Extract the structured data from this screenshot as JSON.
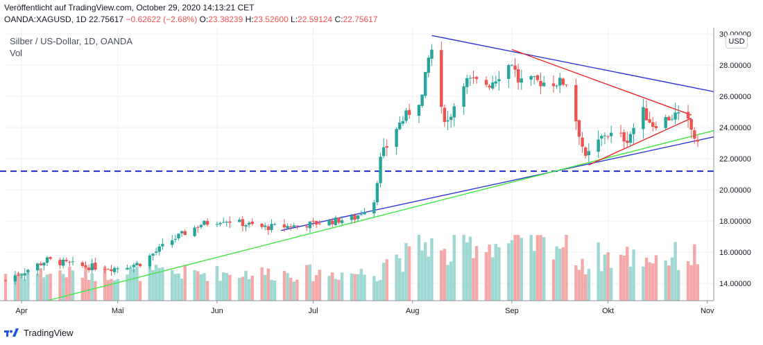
{
  "header": {
    "published": "Veröffentlicht auf TradingView.com, October 29, 2020 14:13:21 CET",
    "symbol": "OANDA:XAGUSD, 1D",
    "last": "22.75617",
    "change": "−0.62622 (−2.68%)",
    "o_label": "O:",
    "o": "23.38239",
    "h_label": "H:",
    "h": "23.52600",
    "l_label": "L:",
    "l": "22.59124",
    "c_label": "C:",
    "c": "22.75617"
  },
  "chart_title": "Silber / US-Dollar, 1D, OANDA",
  "vol_label": "Vol",
  "currency_badge": "USD",
  "footer": {
    "brand": "TradingView"
  },
  "colors": {
    "up": "#26a69a",
    "down": "#ef5350",
    "up_vol": "#9fd8d2",
    "down_vol": "#f4a9a8",
    "trend_blue": "#2b32d8",
    "trend_green": "#3ee83e",
    "trend_red": "#ef2424",
    "support": "#1c2bd0"
  },
  "chart_data": {
    "type": "candlestick",
    "title": "Silber / US-Dollar, 1D, OANDA",
    "ylim": [
      12.9,
      30.4
    ],
    "y_ticks": [
      "30.00000",
      "28.00000",
      "26.00000",
      "24.00000",
      "22.00000",
      "20.00000",
      "18.00000",
      "16.00000",
      "14.00000"
    ],
    "x_ticks": [
      "Apr",
      "Mai",
      "Jun",
      "Jul",
      "Aug",
      "Sep",
      "Okt",
      "Nov"
    ],
    "x_range": [
      "2020-03-27",
      "2020-11-03"
    ],
    "anchors": [
      [
        "2020-03-27",
        14.2
      ],
      [
        "2020-04-09",
        15.5
      ],
      [
        "2020-04-20",
        15.1
      ],
      [
        "2020-04-30",
        15.0
      ],
      [
        "2020-05-08",
        15.3
      ],
      [
        "2020-05-18",
        16.8
      ],
      [
        "2020-05-27",
        17.8
      ],
      [
        "2020-06-03",
        18.1
      ],
      [
        "2020-06-15",
        17.6
      ],
      [
        "2020-06-26",
        17.7
      ],
      [
        "2020-07-07",
        18.0
      ],
      [
        "2020-07-14",
        18.2
      ],
      [
        "2020-07-20",
        19.3
      ],
      [
        "2020-07-22",
        22.0
      ],
      [
        "2020-07-27",
        24.0
      ],
      [
        "2020-08-04",
        26.0
      ],
      [
        "2020-08-06",
        28.4
      ],
      [
        "2020-08-07",
        29.0
      ],
      [
        "2020-08-10",
        25.0
      ],
      [
        "2020-08-12",
        24.4
      ],
      [
        "2020-08-17",
        27.0
      ],
      [
        "2020-08-25",
        26.8
      ],
      [
        "2020-09-01",
        28.2
      ],
      [
        "2020-09-03",
        27.0
      ],
      [
        "2020-09-11",
        26.9
      ],
      [
        "2020-09-18",
        26.9
      ],
      [
        "2020-09-21",
        24.5
      ],
      [
        "2020-09-24",
        22.0
      ],
      [
        "2020-09-30",
        23.6
      ],
      [
        "2020-10-07",
        23.3
      ],
      [
        "2020-10-12",
        25.0
      ],
      [
        "2020-10-15",
        24.2
      ],
      [
        "2020-10-22",
        24.8
      ],
      [
        "2020-10-26",
        24.3
      ],
      [
        "2020-10-28",
        23.4
      ],
      [
        "2020-10-29",
        22.76
      ]
    ],
    "trendlines": [
      {
        "color": "blue",
        "from": [
          "2020-08-07",
          29.9
        ],
        "to": [
          "2020-11-03",
          26.3
        ]
      },
      {
        "color": "blue",
        "from": [
          "2020-06-21",
          17.4
        ],
        "to": [
          "2020-11-03",
          23.4
        ]
      },
      {
        "color": "green",
        "from": [
          "2020-04-09",
          12.9
        ],
        "to": [
          "2020-11-03",
          23.8
        ]
      },
      {
        "color": "red",
        "from": [
          "2020-09-01",
          29.0
        ],
        "to": [
          "2020-10-27",
          24.8
        ]
      },
      {
        "color": "red",
        "from": [
          "2020-09-25",
          21.6
        ],
        "to": [
          "2020-10-27",
          24.6
        ]
      }
    ],
    "support_level": 21.2
  }
}
